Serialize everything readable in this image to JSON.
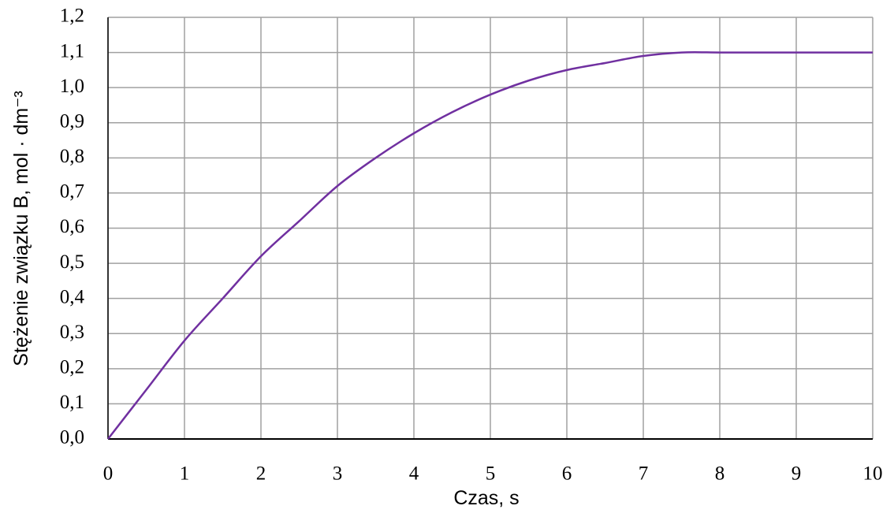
{
  "chart_data": {
    "type": "line",
    "x_label": "Czas, s",
    "y_label": "Stężenie związku B, mol · dm⁻³",
    "x": [
      0,
      0.5,
      1,
      1.5,
      2,
      2.5,
      3,
      3.5,
      4,
      4.5,
      5,
      5.5,
      6,
      6.5,
      7,
      7.5,
      8,
      8.5,
      9,
      9.5,
      10
    ],
    "series": [
      {
        "name": "B",
        "color": "#7030a0",
        "values": [
          0,
          0.14,
          0.28,
          0.4,
          0.52,
          0.62,
          0.72,
          0.8,
          0.87,
          0.93,
          0.98,
          1.02,
          1.05,
          1.07,
          1.09,
          1.1,
          1.1,
          1.1,
          1.1,
          1.1,
          1.1
        ]
      }
    ],
    "xlim": [
      0,
      10
    ],
    "xticks": [
      0,
      1,
      2,
      3,
      4,
      5,
      6,
      7,
      8,
      9,
      10
    ],
    "ylim": [
      0,
      1.2
    ],
    "yticks": [
      {
        "value": 0,
        "label": "0,0"
      },
      {
        "value": 0.1,
        "label": "0,1"
      },
      {
        "value": 0.2,
        "label": "0,2"
      },
      {
        "value": 0.3,
        "label": "0,3"
      },
      {
        "value": 0.4,
        "label": "0,4"
      },
      {
        "value": 0.5,
        "label": "0,5"
      },
      {
        "value": 0.6,
        "label": "0,6"
      },
      {
        "value": 0.7,
        "label": "0,7"
      },
      {
        "value": 0.8,
        "label": "0,8"
      },
      {
        "value": 0.9,
        "label": "0,9"
      },
      {
        "value": 1.0,
        "label": "1,0"
      },
      {
        "value": 1.1,
        "label": "1,1"
      },
      {
        "value": 1.2,
        "label": "1,2"
      }
    ],
    "grid": true,
    "grid_color": "#a0a0a0"
  }
}
